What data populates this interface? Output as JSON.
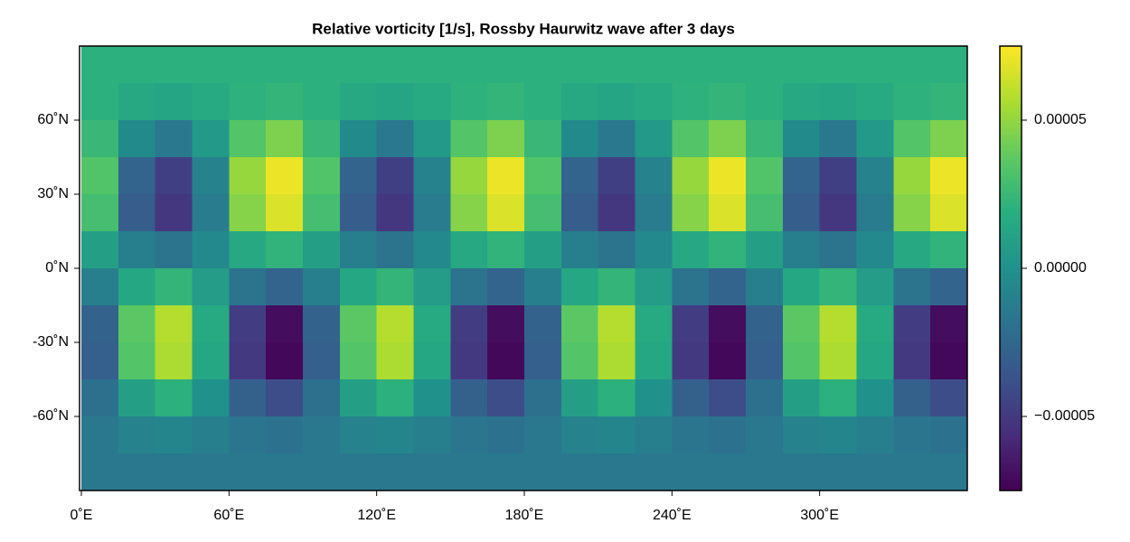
{
  "chart_data": {
    "type": "heatmap",
    "title": "Relative vorticity [1/s], Rossby Haurwitz wave after 3 days",
    "colormap": "viridis",
    "x": [
      7.5,
      22.5,
      37.5,
      52.5,
      67.5,
      82.5,
      97.5,
      112.5,
      127.5,
      142.5,
      157.5,
      172.5,
      187.5,
      202.5,
      217.5,
      232.5,
      247.5,
      262.5,
      277.5,
      292.5,
      307.5,
      322.5,
      337.5,
      352.5
    ],
    "y": [
      82.5,
      67.5,
      52.5,
      37.5,
      22.5,
      7.5,
      -7.5,
      -22.5,
      -37.5,
      -52.5,
      -67.5,
      -82.5
    ],
    "z": [
      [
        2e-05,
        2e-05,
        2e-05,
        2e-05,
        2e-05,
        2e-05,
        2e-05,
        2e-05,
        2e-05,
        2e-05,
        2e-05,
        2e-05,
        2e-05,
        2e-05,
        2e-05,
        2e-05,
        2e-05,
        2e-05,
        2e-05,
        2e-05,
        2e-05,
        2e-05,
        2e-05,
        2e-05
      ],
      [
        2e-05,
        1.5e-05,
        1.3e-05,
        1.6e-05,
        2.1e-05,
        2.3e-05,
        2e-05,
        1.5e-05,
        1.3e-05,
        1.6e-05,
        2.1e-05,
        2.3e-05,
        2e-05,
        1.5e-05,
        1.3e-05,
        1.6e-05,
        2.1e-05,
        2.3e-05,
        2e-05,
        1.5e-05,
        1.3e-05,
        1.6e-05,
        2.1e-05,
        2.3e-05
      ],
      [
        2.5e-05,
        -4e-06,
        -1.5e-05,
        5e-06,
        3.4e-05,
        4.5e-05,
        2.5e-05,
        -4e-06,
        -1.5e-05,
        5e-06,
        3.4e-05,
        4.5e-05,
        2.5e-05,
        -4e-06,
        -1.5e-05,
        5e-06,
        3.4e-05,
        4.5e-05,
        2.5e-05,
        -4e-06,
        -1.5e-05,
        5e-06,
        3.4e-05,
        4.5e-05
      ],
      [
        3.3e-05,
        -2.7e-05,
        -4.7e-05,
        -9e-06,
        5.1e-05,
        7.1e-05,
        3.3e-05,
        -2.7e-05,
        -4.7e-05,
        -9e-06,
        5.1e-05,
        7.1e-05,
        3.3e-05,
        -2.7e-05,
        -4.7e-05,
        -9e-06,
        5.1e-05,
        7.1e-05,
        3.3e-05,
        -2.7e-05,
        -4.7e-05,
        -9e-06,
        5.1e-05,
        7.1e-05
      ],
      [
        2.9e-05,
        -3.1e-05,
        -5.1e-05,
        -1.3e-05,
        4.7e-05,
        6.7e-05,
        2.9e-05,
        -3.1e-05,
        -5.1e-05,
        -1.3e-05,
        4.7e-05,
        6.7e-05,
        2.9e-05,
        -3.1e-05,
        -5.1e-05,
        -1.3e-05,
        4.7e-05,
        6.7e-05,
        2.9e-05,
        -3.1e-05,
        -5.1e-05,
        -1.3e-05,
        4.7e-05,
        6.7e-05
      ],
      [
        9e-06,
        -1.1e-05,
        -1.8e-05,
        -5e-06,
        1.5e-05,
        2.2e-05,
        9e-06,
        -1.1e-05,
        -1.8e-05,
        -5e-06,
        1.5e-05,
        2.2e-05,
        9e-06,
        -1.1e-05,
        -1.8e-05,
        -5e-06,
        1.5e-05,
        2.2e-05,
        9e-06,
        -1.1e-05,
        -1.8e-05,
        -5e-06,
        1.5e-05,
        2.2e-05
      ],
      [
        -1.1e-05,
        1.4e-05,
        2.3e-05,
        7e-06,
        -1.8e-05,
        -2.7e-05,
        -1.1e-05,
        1.4e-05,
        2.3e-05,
        7e-06,
        -1.8e-05,
        -2.7e-05,
        -1.1e-05,
        1.4e-05,
        2.3e-05,
        7e-06,
        -1.8e-05,
        -2.7e-05,
        -1.1e-05,
        1.4e-05,
        2.3e-05,
        7e-06,
        -1.8e-05,
        -2.7e-05
      ],
      [
        -2.8e-05,
        3.6e-05,
        5.8e-05,
        1.6e-05,
        -4.8e-05,
        -7e-05,
        -2.8e-05,
        3.6e-05,
        5.8e-05,
        1.6e-05,
        -4.8e-05,
        -7e-05,
        -2.8e-05,
        3.6e-05,
        5.8e-05,
        1.6e-05,
        -4.8e-05,
        -7e-05,
        -2.8e-05,
        3.6e-05,
        5.8e-05,
        1.6e-05,
        -4.8e-05,
        -7e-05
      ],
      [
        -3e-05,
        3.4e-05,
        5.6e-05,
        1.4e-05,
        -5e-05,
        -7.2e-05,
        -3e-05,
        3.4e-05,
        5.6e-05,
        1.4e-05,
        -5e-05,
        -7.2e-05,
        -3e-05,
        3.4e-05,
        5.6e-05,
        1.4e-05,
        -5e-05,
        -7.2e-05,
        -3e-05,
        3.4e-05,
        5.6e-05,
        1.4e-05,
        -5e-05,
        -7.2e-05
      ],
      [
        -2e-05,
        9e-06,
        2e-05,
        0.0,
        -2.9e-05,
        -4e-05,
        -2e-05,
        9e-06,
        2e-05,
        0.0,
        -2.9e-05,
        -4e-05,
        -2e-05,
        9e-06,
        2e-05,
        0.0,
        -2.9e-05,
        -4e-05,
        -2e-05,
        9e-06,
        2e-05,
        0.0,
        -2.9e-05,
        -4e-05
      ],
      [
        -1.5e-05,
        -9e-06,
        -7e-06,
        -1.1e-05,
        -1.7e-05,
        -1.9e-05,
        -1.5e-05,
        -9e-06,
        -7e-06,
        -1.1e-05,
        -1.7e-05,
        -1.9e-05,
        -1.5e-05,
        -9e-06,
        -7e-06,
        -1.1e-05,
        -1.7e-05,
        -1.9e-05,
        -1.5e-05,
        -9e-06,
        -7e-06,
        -1.1e-05,
        -1.7e-05,
        -1.9e-05
      ],
      [
        -1.5e-05,
        -1.5e-05,
        -1.5e-05,
        -1.5e-05,
        -1.5e-05,
        -1.5e-05,
        -1.5e-05,
        -1.5e-05,
        -1.5e-05,
        -1.5e-05,
        -1.5e-05,
        -1.5e-05,
        -1.5e-05,
        -1.5e-05,
        -1.5e-05,
        -1.5e-05,
        -1.5e-05,
        -1.5e-05,
        -1.5e-05,
        -1.5e-05,
        -1.5e-05,
        -1.5e-05,
        -1.5e-05,
        -1.5e-05
      ]
    ],
    "xlim": [
      0,
      360
    ],
    "ylim": [
      -90,
      90
    ],
    "xticks": [
      {
        "value": 0,
        "label": "0˚E"
      },
      {
        "value": 60,
        "label": "60˚E"
      },
      {
        "value": 120,
        "label": "120˚E"
      },
      {
        "value": 180,
        "label": "180˚E"
      },
      {
        "value": 240,
        "label": "240˚E"
      },
      {
        "value": 300,
        "label": "300˚E"
      }
    ],
    "yticks": [
      {
        "value": -60,
        "label": "-60˚N"
      },
      {
        "value": -30,
        "label": "-30˚N"
      },
      {
        "value": 0,
        "label": "0˚N"
      },
      {
        "value": 30,
        "label": "30˚N"
      },
      {
        "value": 60,
        "label": "60˚N"
      }
    ],
    "zlim": [
      -7.5e-05,
      7.5e-05
    ],
    "zticks": [
      {
        "value": -5e-05,
        "label": "−0.00005"
      },
      {
        "value": 0,
        "label": "0.00000"
      },
      {
        "value": 5e-05,
        "label": "0.00005"
      }
    ]
  }
}
